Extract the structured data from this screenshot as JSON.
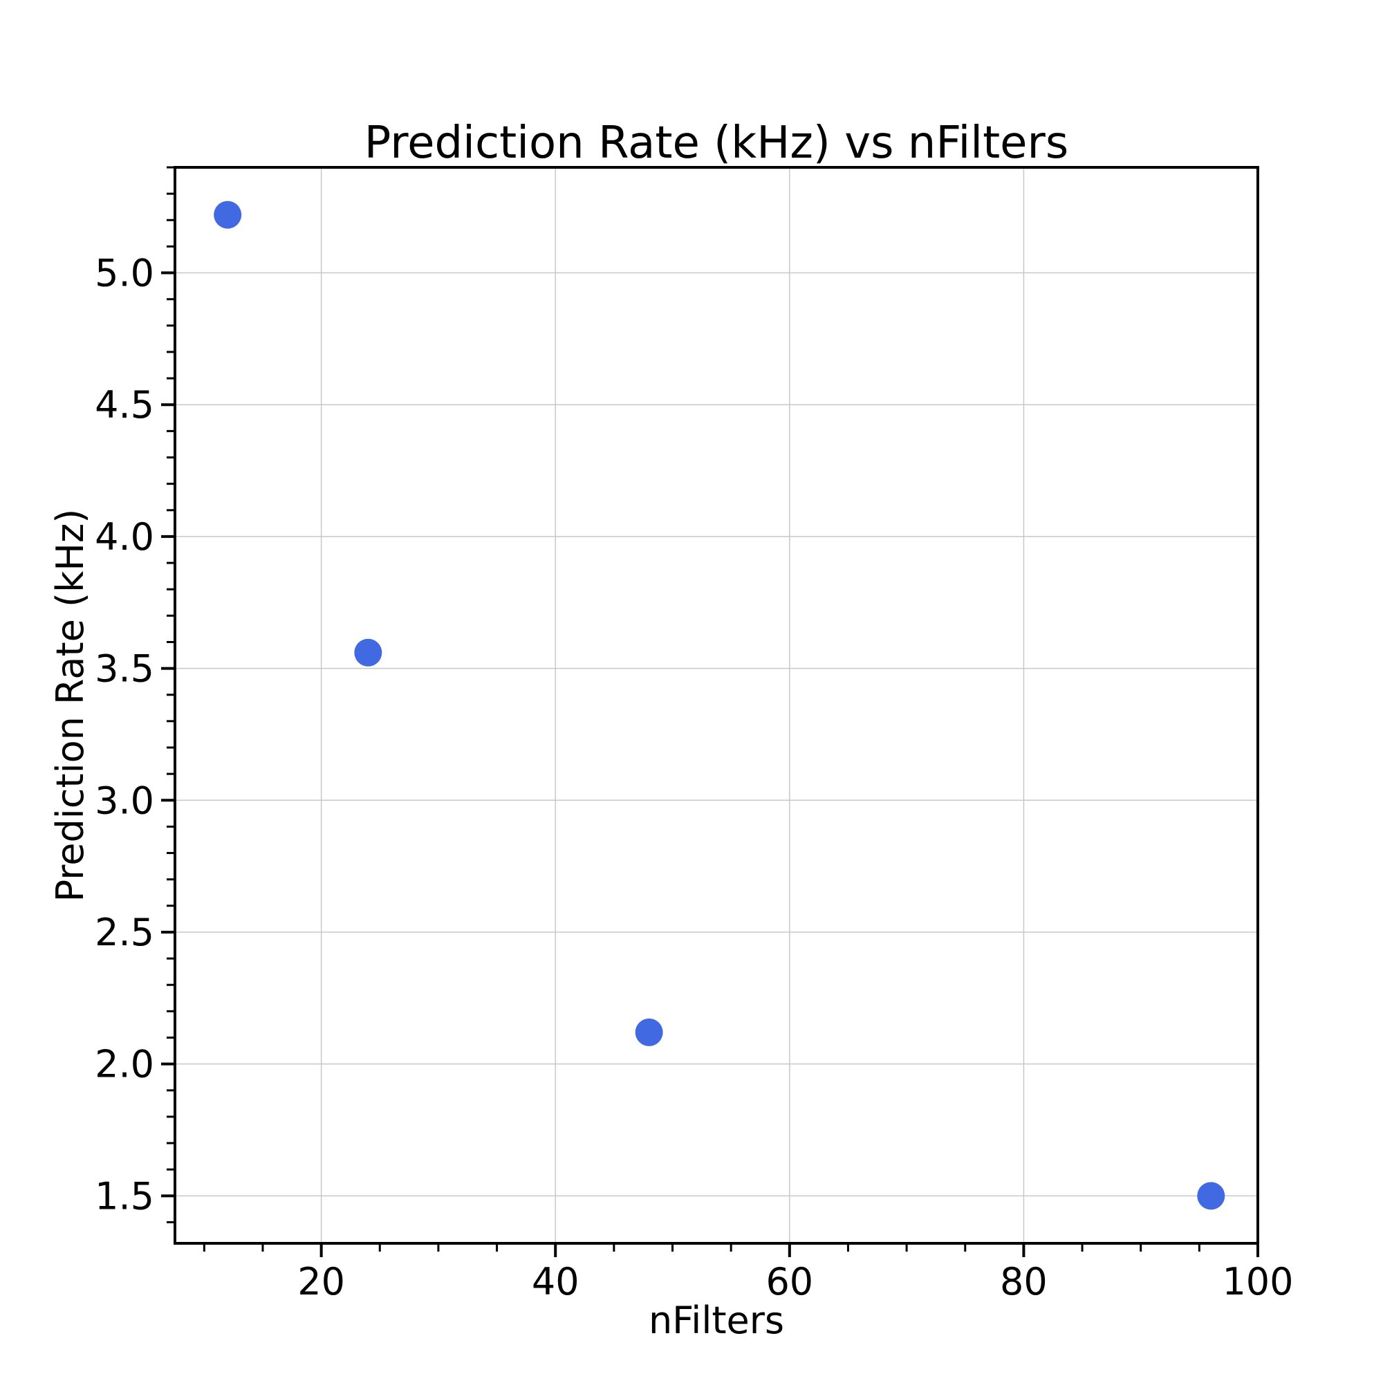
{
  "chart_data": {
    "type": "scatter",
    "title": "Prediction Rate (kHz) vs nFilters",
    "xlabel": "nFilters",
    "ylabel": "Prediction Rate (kHz)",
    "xlim": [
      7.5,
      100
    ],
    "ylim": [
      1.32,
      5.4
    ],
    "x_ticks": [
      20,
      40,
      60,
      80,
      100
    ],
    "x_tick_labels": [
      "20",
      "40",
      "60",
      "80",
      "100"
    ],
    "x_minor_step": 5,
    "y_ticks": [
      1.5,
      2.0,
      2.5,
      3.0,
      3.5,
      4.0,
      4.5,
      5.0
    ],
    "y_tick_labels": [
      "1.5",
      "2.0",
      "2.5",
      "3.0",
      "3.5",
      "4.0",
      "4.5",
      "5.0"
    ],
    "y_minor_step": 0.1,
    "grid": true,
    "marker_color": "#4169e1",
    "series": [
      {
        "x": [
          12,
          24,
          48,
          96
        ],
        "y": [
          5.22,
          3.56,
          2.12,
          1.5
        ]
      }
    ]
  }
}
